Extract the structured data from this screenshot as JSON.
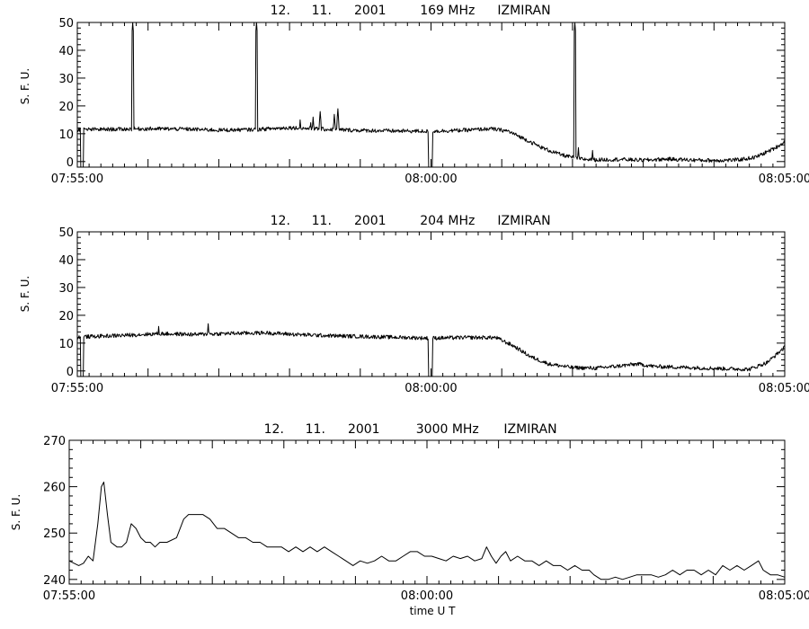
{
  "figure": {
    "xlabel": "time U T"
  },
  "chart_data": [
    {
      "type": "line",
      "title": "12. 11. 2001 169 MHz IZMIRAN",
      "title_parts": [
        "12.",
        "11.",
        "2001",
        "169 MHz",
        "IZMIRAN"
      ],
      "ylabel": "S. F. U.",
      "xlabel": "",
      "ylim": [
        -2,
        50
      ],
      "yticks": [
        0,
        10,
        20,
        30,
        40,
        50
      ],
      "xlim": [
        0,
        600
      ],
      "xticks": [
        0,
        300,
        600
      ],
      "xtick_labels": [
        "07:55:00",
        "08:00:00",
        "08:05:00"
      ],
      "x_unit": "seconds after 07:55:00 UT",
      "series": [
        {
          "baseline": [
            [
              0,
              11.5
            ],
            [
              30,
              11.6
            ],
            [
              60,
              11.8
            ],
            [
              90,
              11.7
            ],
            [
              120,
              11.3
            ],
            [
              150,
              11.5
            ],
            [
              180,
              12.2
            ],
            [
              210,
              11.6
            ],
            [
              240,
              11.2
            ],
            [
              270,
              11.0
            ],
            [
              296,
              10.9
            ],
            [
              300,
              10.9
            ],
            [
              330,
              11.3
            ],
            [
              350,
              11.8
            ],
            [
              365,
              11.0
            ],
            [
              380,
              8.0
            ],
            [
              395,
              4.8
            ],
            [
              410,
              2.5
            ],
            [
              425,
              1.0
            ],
            [
              440,
              0.6
            ],
            [
              460,
              0.8
            ],
            [
              480,
              0.5
            ],
            [
              500,
              0.9
            ],
            [
              520,
              0.6
            ],
            [
              540,
              0.4
            ],
            [
              560,
              0.6
            ],
            [
              575,
              1.5
            ],
            [
              590,
              4.5
            ],
            [
              600,
              7.0
            ]
          ],
          "dropouts": [
            [
              3,
              5
            ],
            [
              298,
              301
            ]
          ],
          "spikes": [
            [
              47,
              50
            ],
            [
              152,
              50
            ],
            [
              189,
              15
            ],
            [
              198,
              14
            ],
            [
              200,
              16
            ],
            [
              206,
              18
            ],
            [
              218,
              17
            ],
            [
              221,
              19
            ],
            [
              422,
              50
            ],
            [
              425,
              5
            ],
            [
              437,
              4
            ]
          ]
        }
      ]
    },
    {
      "type": "line",
      "title": "12. 11. 2001 204 MHz IZMIRAN",
      "title_parts": [
        "12.",
        "11.",
        "2001",
        "204 MHz",
        "IZMIRAN"
      ],
      "ylabel": "S. F. U.",
      "xlabel": "",
      "ylim": [
        -2,
        50
      ],
      "yticks": [
        0,
        10,
        20,
        30,
        40,
        50
      ],
      "xlim": [
        0,
        600
      ],
      "xticks": [
        0,
        300,
        600
      ],
      "xtick_labels": [
        "07:55:00",
        "08:00:00",
        "08:05:00"
      ],
      "x_unit": "seconds after 07:55:00 UT",
      "series": [
        {
          "baseline": [
            [
              0,
              12.2
            ],
            [
              40,
              12.8
            ],
            [
              70,
              13.4
            ],
            [
              100,
              13.1
            ],
            [
              130,
              13.5
            ],
            [
              160,
              13.7
            ],
            [
              190,
              13.0
            ],
            [
              220,
              12.6
            ],
            [
              250,
              12.3
            ],
            [
              280,
              12.0
            ],
            [
              296,
              11.8
            ],
            [
              300,
              11.8
            ],
            [
              330,
              12.0
            ],
            [
              355,
              12.0
            ],
            [
              370,
              9.0
            ],
            [
              385,
              5.0
            ],
            [
              400,
              2.5
            ],
            [
              420,
              1.2
            ],
            [
              440,
              1.0
            ],
            [
              460,
              1.8
            ],
            [
              475,
              2.5
            ],
            [
              490,
              1.6
            ],
            [
              520,
              1.2
            ],
            [
              550,
              0.8
            ],
            [
              570,
              0.6
            ],
            [
              585,
              3.0
            ],
            [
              600,
              8.5
            ]
          ],
          "dropouts": [
            [
              3,
              5
            ],
            [
              298,
              301
            ]
          ],
          "spikes": [
            [
              69,
              16
            ],
            [
              111,
              17
            ]
          ]
        }
      ]
    },
    {
      "type": "line",
      "title": "12. 11. 2001 3000 MHz IZMIRAN",
      "title_parts": [
        "12.",
        "11.",
        "2001",
        "3000 MHz",
        "IZMIRAN"
      ],
      "ylabel": "S. F. U.",
      "xlabel": "time U T",
      "ylim": [
        239,
        270
      ],
      "yticks": [
        240,
        250,
        260,
        270
      ],
      "xlim": [
        0,
        600
      ],
      "xticks": [
        0,
        300,
        600
      ],
      "xtick_labels": [
        "07:55:00",
        "08:00:00",
        "08:05:00"
      ],
      "x_unit": "seconds after 07:55:00 UT",
      "series": [
        {
          "points": [
            [
              0,
              244
            ],
            [
              4,
              243.5
            ],
            [
              8,
              243
            ],
            [
              12,
              243.5
            ],
            [
              16,
              245
            ],
            [
              20,
              244
            ],
            [
              24,
              252
            ],
            [
              27,
              260
            ],
            [
              29,
              261
            ],
            [
              32,
              254
            ],
            [
              35,
              248
            ],
            [
              40,
              247
            ],
            [
              44,
              247
            ],
            [
              48,
              248
            ],
            [
              52,
              252
            ],
            [
              56,
              251
            ],
            [
              60,
              249
            ],
            [
              64,
              248
            ],
            [
              68,
              248
            ],
            [
              72,
              247
            ],
            [
              76,
              248
            ],
            [
              82,
              248
            ],
            [
              90,
              249
            ],
            [
              96,
              253
            ],
            [
              100,
              254
            ],
            [
              106,
              254
            ],
            [
              112,
              254
            ],
            [
              118,
              253
            ],
            [
              124,
              251
            ],
            [
              130,
              251
            ],
            [
              136,
              250
            ],
            [
              142,
              249
            ],
            [
              148,
              249
            ],
            [
              154,
              248
            ],
            [
              160,
              248
            ],
            [
              166,
              247
            ],
            [
              172,
              247
            ],
            [
              178,
              247
            ],
            [
              184,
              246
            ],
            [
              190,
              247
            ],
            [
              196,
              246
            ],
            [
              202,
              247
            ],
            [
              208,
              246
            ],
            [
              214,
              247
            ],
            [
              220,
              246
            ],
            [
              226,
              245
            ],
            [
              232,
              244
            ],
            [
              238,
              243
            ],
            [
              244,
              244
            ],
            [
              250,
              243.5
            ],
            [
              256,
              244
            ],
            [
              262,
              245
            ],
            [
              268,
              244
            ],
            [
              274,
              244
            ],
            [
              280,
              245
            ],
            [
              286,
              246
            ],
            [
              292,
              246
            ],
            [
              298,
              245
            ],
            [
              304,
              245
            ],
            [
              310,
              244.5
            ],
            [
              316,
              244
            ],
            [
              322,
              245
            ],
            [
              328,
              244.5
            ],
            [
              334,
              245
            ],
            [
              340,
              244
            ],
            [
              346,
              244.5
            ],
            [
              350,
              247
            ],
            [
              354,
              245
            ],
            [
              358,
              243.5
            ],
            [
              362,
              245
            ],
            [
              366,
              246
            ],
            [
              370,
              244
            ],
            [
              376,
              245
            ],
            [
              382,
              244
            ],
            [
              388,
              244
            ],
            [
              394,
              243
            ],
            [
              400,
              244
            ],
            [
              406,
              243
            ],
            [
              412,
              243
            ],
            [
              418,
              242
            ],
            [
              424,
              243
            ],
            [
              430,
              242
            ],
            [
              436,
              242
            ],
            [
              440,
              241
            ],
            [
              446,
              240
            ],
            [
              452,
              240
            ],
            [
              458,
              240.5
            ],
            [
              464,
              240
            ],
            [
              470,
              240.5
            ],
            [
              476,
              241
            ],
            [
              482,
              241
            ],
            [
              488,
              241
            ],
            [
              494,
              240.5
            ],
            [
              500,
              241
            ],
            [
              506,
              242
            ],
            [
              512,
              241
            ],
            [
              518,
              242
            ],
            [
              524,
              242
            ],
            [
              530,
              241
            ],
            [
              536,
              242
            ],
            [
              542,
              241
            ],
            [
              548,
              243
            ],
            [
              554,
              242
            ],
            [
              560,
              243
            ],
            [
              566,
              242
            ],
            [
              572,
              243
            ],
            [
              578,
              244
            ],
            [
              582,
              242
            ],
            [
              588,
              241
            ],
            [
              594,
              241
            ],
            [
              600,
              240.5
            ]
          ]
        }
      ]
    }
  ]
}
